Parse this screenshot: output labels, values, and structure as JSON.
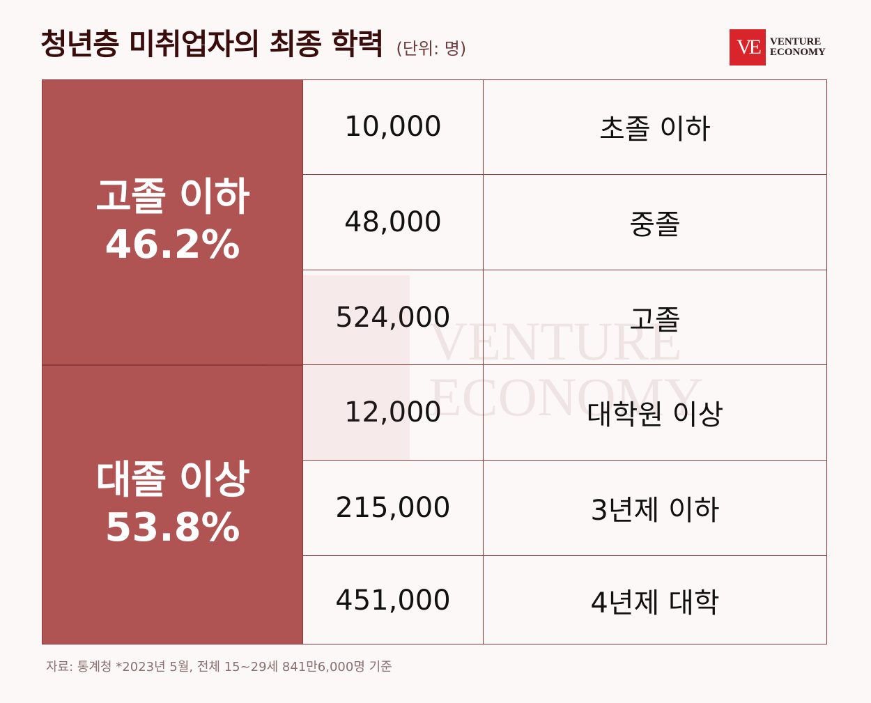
{
  "header": {
    "title": "청년층 미취업자의 최종 학력",
    "unit": "(단위: 명)"
  },
  "logo": {
    "mark": "VE",
    "line1": "VENTURE",
    "line2": "ECONOMY",
    "brand_color": "#d8242a"
  },
  "groups": [
    {
      "label": "고졸 이하",
      "percent": "46.2%"
    },
    {
      "label": "대졸 이상",
      "percent": "53.8%"
    }
  ],
  "rows": [
    {
      "count": "10,000",
      "education": "초졸 이하"
    },
    {
      "count": "48,000",
      "education": "중졸"
    },
    {
      "count": "524,000",
      "education": "고졸"
    },
    {
      "count": "12,000",
      "education": "대학원 이상"
    },
    {
      "count": "215,000",
      "education": "3년제 이하"
    },
    {
      "count": "451,000",
      "education": "4년제 대학"
    }
  ],
  "watermark": {
    "line1": "VENTURE",
    "line2": "ECONOMY"
  },
  "source": "자료: 통계청 *2023년 5월, 전체 15~29세 841만6,000명 기준",
  "colors": {
    "accent": "#b05353",
    "background": "#fcf8f7",
    "title": "#3a0d0d"
  }
}
